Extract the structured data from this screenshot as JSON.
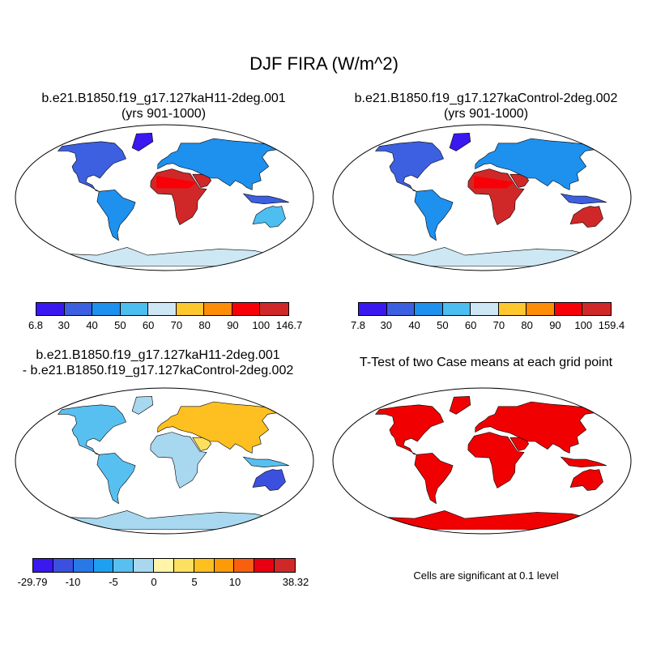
{
  "figure": {
    "title": "DJF FIRA (W/m^2)"
  },
  "panels": [
    {
      "id": "case",
      "title_line1": "b.e21.B1850.f19_g17.127kaH11-2deg.001",
      "title_line2": "(yrs 901-1000)",
      "colorbar": {
        "colors": [
          "#3a18f0",
          "#3c60e0",
          "#1e90ee",
          "#4cbef0",
          "#cde8f4",
          "#fdc72e",
          "#fd8c06",
          "#f80008",
          "#d02828"
        ],
        "labels": [
          "6.8",
          "30",
          "40",
          "50",
          "60",
          "70",
          "80",
          "90",
          "100",
          "146.7"
        ]
      }
    },
    {
      "id": "control",
      "title_line1": "b.e21.B1850.f19_g17.127kaControl-2deg.002",
      "title_line2": "(yrs 901-1000)",
      "colorbar": {
        "colors": [
          "#3a18f0",
          "#3c60e0",
          "#1e90ee",
          "#4cbef0",
          "#cde8f4",
          "#fdc72e",
          "#fd8c06",
          "#f80008",
          "#d02828"
        ],
        "labels": [
          "7.8",
          "30",
          "40",
          "50",
          "60",
          "70",
          "80",
          "90",
          "100",
          "159.4"
        ]
      }
    },
    {
      "id": "difference",
      "title_line1": "b.e21.B1850.f19_g17.127kaH11-2deg.001",
      "title_line2": "- b.e21.B1850.f19_g17.127kaControl-2deg.002",
      "colorbar": {
        "colors": [
          "#3a18f0",
          "#3c50e0",
          "#2878e8",
          "#1ea0f0",
          "#58c0f0",
          "#a8d8f0",
          "#fff4a8",
          "#fde060",
          "#fdc020",
          "#fd9a08",
          "#f86010",
          "#e80010",
          "#d02828"
        ],
        "labels": [
          "-29.79",
          "-10",
          "-5",
          "0",
          "5",
          "10",
          "38.32"
        ]
      }
    },
    {
      "id": "ttest",
      "title_line1": "T-Test of two Case means at each grid point",
      "note": "Cells are significant at 0.1 level"
    }
  ],
  "map_colors": {
    "significant": "#f00000",
    "ocean": "#ffffff",
    "outline": "#000000"
  }
}
